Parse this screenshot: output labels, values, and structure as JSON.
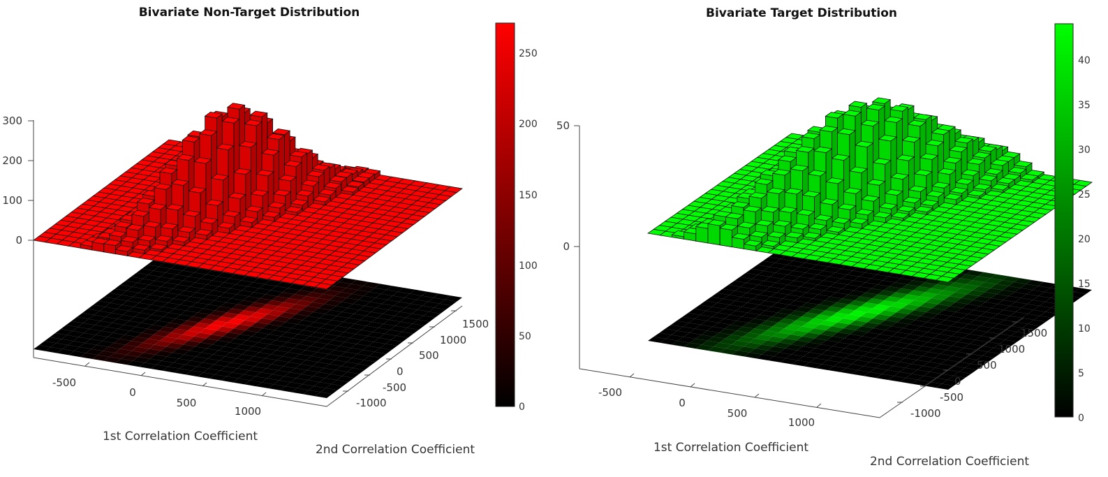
{
  "chart_data": [
    {
      "type": "bar3d",
      "title": "Bivariate Non-Target Distribution",
      "xlabel": "1st Correlation Coefficient",
      "ylabel": "2nd Correlation Coefficient",
      "x_ticks": [
        "-500",
        "0",
        "500",
        "1000"
      ],
      "y_ticks": [
        "-1000",
        "-500",
        "0",
        "500",
        "1000",
        "1500"
      ],
      "z_ticks": [
        "0",
        "100",
        "200",
        "300"
      ],
      "xlim": [
        -850,
        1400
      ],
      "ylim": [
        -1300,
        1750
      ],
      "zlim": [
        0,
        300
      ],
      "colorbar": {
        "ticks": [
          "0",
          "50",
          "100",
          "150",
          "200",
          "250"
        ],
        "range": [
          0,
          272
        ]
      },
      "color": "#ff0000",
      "peak": 270,
      "center": [
        150,
        150
      ],
      "spread": [
        230,
        620
      ],
      "correlation": 0.88,
      "grid": 25,
      "projection": "heatmap below"
    },
    {
      "type": "bar3d",
      "title": "Bivariate Target Distribution",
      "xlabel": "1st Correlation Coefficient",
      "ylabel": "2nd Correlation Coefficient",
      "x_ticks": [
        "-500",
        "0",
        "500",
        "1000"
      ],
      "y_ticks": [
        "-1000",
        "-500",
        "0",
        "500",
        "1000",
        "1500"
      ],
      "z_ticks": [
        "0",
        "50"
      ],
      "xlim": [
        -850,
        1400
      ],
      "ylim": [
        -1300,
        1750
      ],
      "zlim": [
        -35,
        55
      ],
      "colorbar": {
        "ticks": [
          "0",
          "5",
          "10",
          "15",
          "20",
          "25",
          "30",
          "35",
          "40"
        ],
        "range": [
          0,
          44
        ]
      },
      "color": "#00ff00",
      "peak": 42,
      "center": [
        200,
        250
      ],
      "spread": [
        330,
        820
      ],
      "correlation": 0.9,
      "grid": 25,
      "projection": "heatmap below"
    }
  ]
}
